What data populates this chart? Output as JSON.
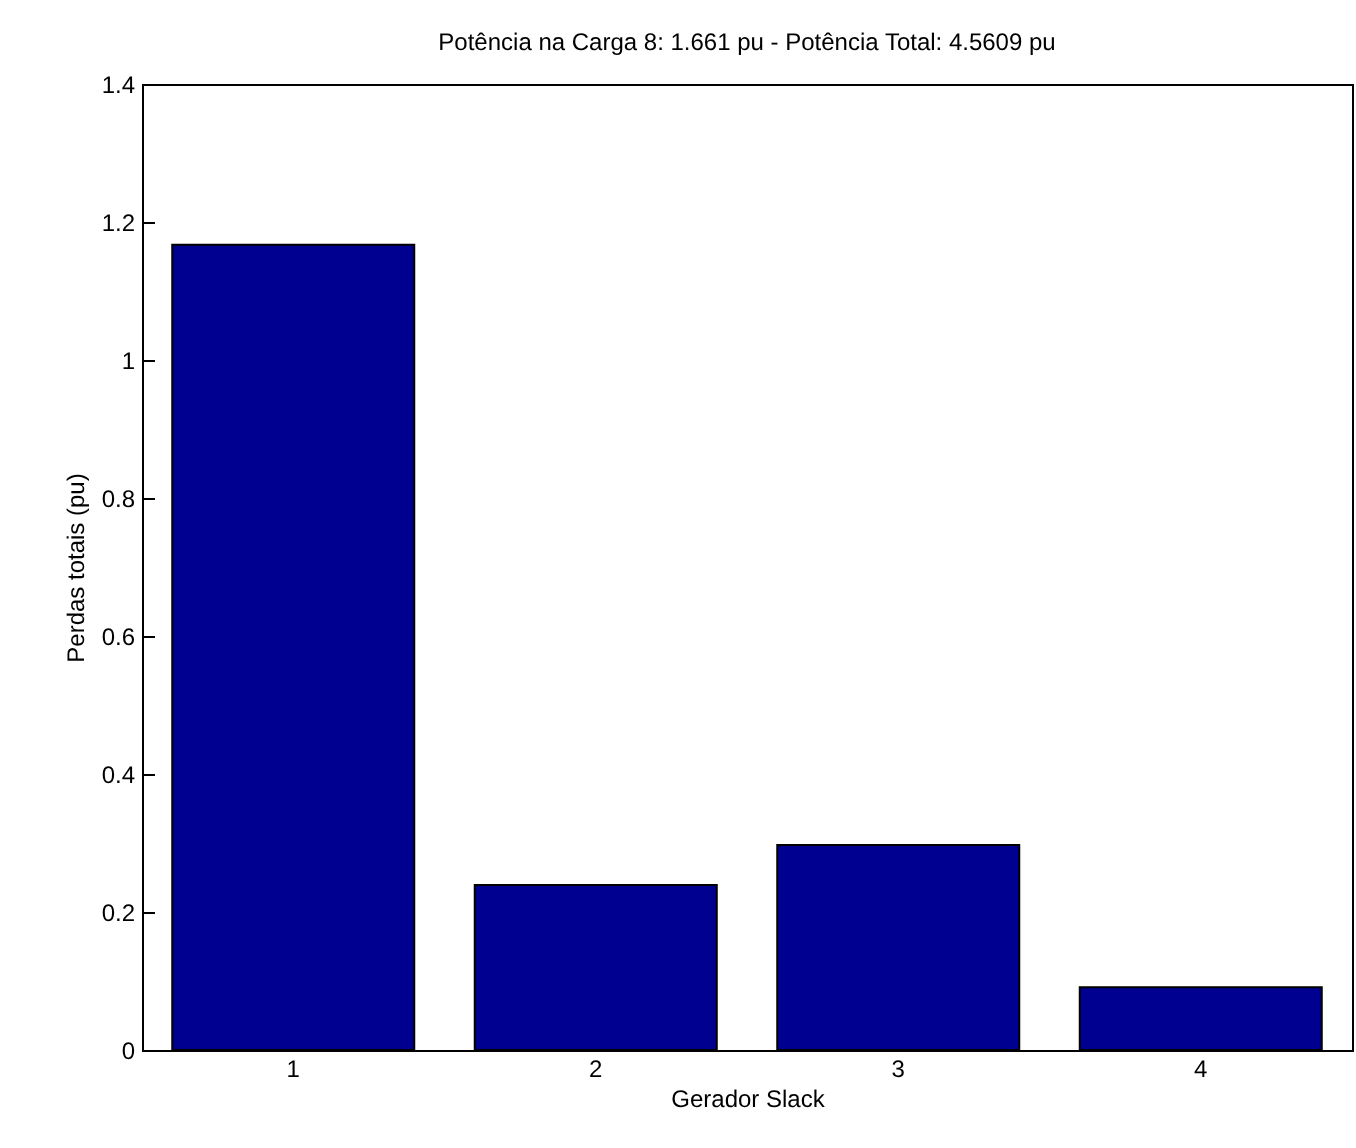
{
  "chart_data": {
    "type": "bar",
    "title": "Potência na Carga 8: 1.661 pu - Potência Total: 4.5609 pu",
    "xlabel": "Gerador Slack",
    "ylabel": "Perdas totais (pu)",
    "categories": [
      "1",
      "2",
      "3",
      "4"
    ],
    "values": [
      1.167,
      0.239,
      0.297,
      0.091
    ],
    "color": "#000090",
    "ylim": [
      0,
      1.4
    ],
    "yticks": [
      0,
      0.2,
      0.4,
      0.6,
      0.8,
      1,
      1.2,
      1.4
    ],
    "grid": false
  }
}
